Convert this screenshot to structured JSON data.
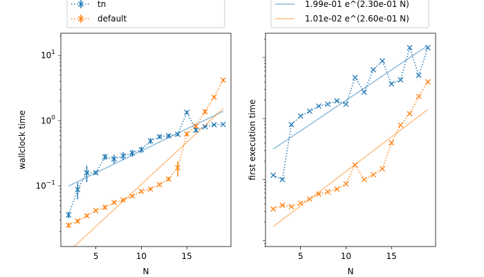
{
  "colors": {
    "tn": "#1f77b4",
    "default": "#ff7f0e"
  },
  "chart_data": [
    {
      "type": "line",
      "xlabel": "N",
      "ylabel": "wallclock time",
      "yscale": "log",
      "xlim": [
        1.15,
        19.85
      ],
      "ylim": [
        0.0118,
        22
      ],
      "xticks": [
        5,
        10,
        15
      ],
      "yticks": [
        {
          "value": 0.1,
          "base": "10",
          "exp": "−1"
        },
        {
          "value": 1,
          "base": "10",
          "exp": "0"
        },
        {
          "value": 10,
          "base": "10",
          "exp": "1"
        }
      ],
      "legend": {
        "position": "top-left",
        "entries": [
          {
            "label": "tn",
            "series": 0
          },
          {
            "label": "default",
            "series": 1
          }
        ]
      },
      "series": [
        {
          "name": "tn",
          "color_key": "tn",
          "style": "dotted-x-errorbar",
          "x": [
            2,
            3,
            4,
            5,
            6,
            7,
            8,
            9,
            10,
            11,
            12,
            13,
            14,
            15,
            16,
            17,
            18,
            19
          ],
          "y": [
            0.036,
            0.088,
            0.16,
            0.16,
            0.28,
            0.26,
            0.29,
            0.32,
            0.36,
            0.49,
            0.57,
            0.59,
            0.62,
            1.35,
            0.72,
            0.81,
            0.87,
            0.88
          ],
          "yerr": [
            0.004,
            0.025,
            0.045,
            0.01,
            0.03,
            0.04,
            0.04,
            0.04,
            0.04,
            0.05,
            0.04,
            0.04,
            0.04,
            0.07,
            0.06,
            0.03,
            0.03,
            0.03
          ]
        },
        {
          "name": "default",
          "color_key": "default",
          "style": "dotted-x-errorbar",
          "x": [
            2,
            3,
            4,
            5,
            6,
            7,
            8,
            9,
            10,
            11,
            12,
            13,
            14,
            15,
            16,
            17,
            18,
            19
          ],
          "y": [
            0.025,
            0.029,
            0.035,
            0.042,
            0.047,
            0.056,
            0.061,
            0.07,
            0.083,
            0.09,
            0.105,
            0.128,
            0.19,
            0.63,
            0.83,
            1.38,
            2.3,
            4.2
          ],
          "yerr": [
            0.002,
            0.002,
            0.002,
            0.002,
            0.003,
            0.003,
            0.003,
            0.003,
            0.004,
            0.004,
            0.005,
            0.008,
            0.05,
            0.05,
            0.05,
            0.1,
            0.1,
            0.2
          ]
        }
      ],
      "fits": [
        {
          "color_key": "tn",
          "a": 0.0732,
          "b": 0.1553,
          "x": [
            2,
            19
          ]
        },
        {
          "color_key": "default",
          "a": 0.00543,
          "b": 0.2973,
          "x": [
            2,
            19
          ]
        }
      ]
    },
    {
      "type": "line",
      "xlabel": "N",
      "ylabel": "first execution time",
      "yscale": "log",
      "xlim": [
        1.15,
        19.85
      ],
      "ylim": [
        0.008,
        25
      ],
      "xticks": [
        5,
        10,
        15
      ],
      "yticks": [],
      "legend": {
        "position": "top-center",
        "entries": [
          {
            "label": "1.99e-01 e^(2.30e-01 N)",
            "fit": 0
          },
          {
            "label": "1.01e-02 e^(2.60e-01 N)",
            "fit": 1
          }
        ]
      },
      "series": [
        {
          "name": "tn",
          "color_key": "tn",
          "style": "dotted-x",
          "x": [
            2,
            3,
            4,
            5,
            6,
            7,
            8,
            9,
            10,
            11,
            12,
            13,
            14,
            15,
            16,
            17,
            18,
            19
          ],
          "y": [
            0.118,
            0.1,
            0.8,
            1.1,
            1.32,
            1.6,
            1.72,
            1.95,
            1.72,
            4.7,
            2.7,
            6.3,
            8.8,
            3.7,
            4.3,
            14.5,
            5.1,
            14.5
          ]
        },
        {
          "name": "default",
          "color_key": "default",
          "style": "dotted-x",
          "x": [
            2,
            3,
            4,
            5,
            6,
            7,
            8,
            9,
            10,
            11,
            12,
            13,
            14,
            15,
            16,
            17,
            18,
            19
          ],
          "y": [
            0.033,
            0.038,
            0.036,
            0.041,
            0.048,
            0.058,
            0.063,
            0.07,
            0.085,
            0.175,
            0.1,
            0.12,
            0.15,
            0.4,
            0.78,
            1.2,
            2.3,
            4.0
          ]
        }
      ],
      "fits": [
        {
          "color_key": "tn",
          "a": 0.199,
          "b": 0.23,
          "x": [
            2,
            19
          ]
        },
        {
          "color_key": "default",
          "a": 0.0101,
          "b": 0.26,
          "x": [
            2,
            19
          ]
        }
      ]
    }
  ]
}
